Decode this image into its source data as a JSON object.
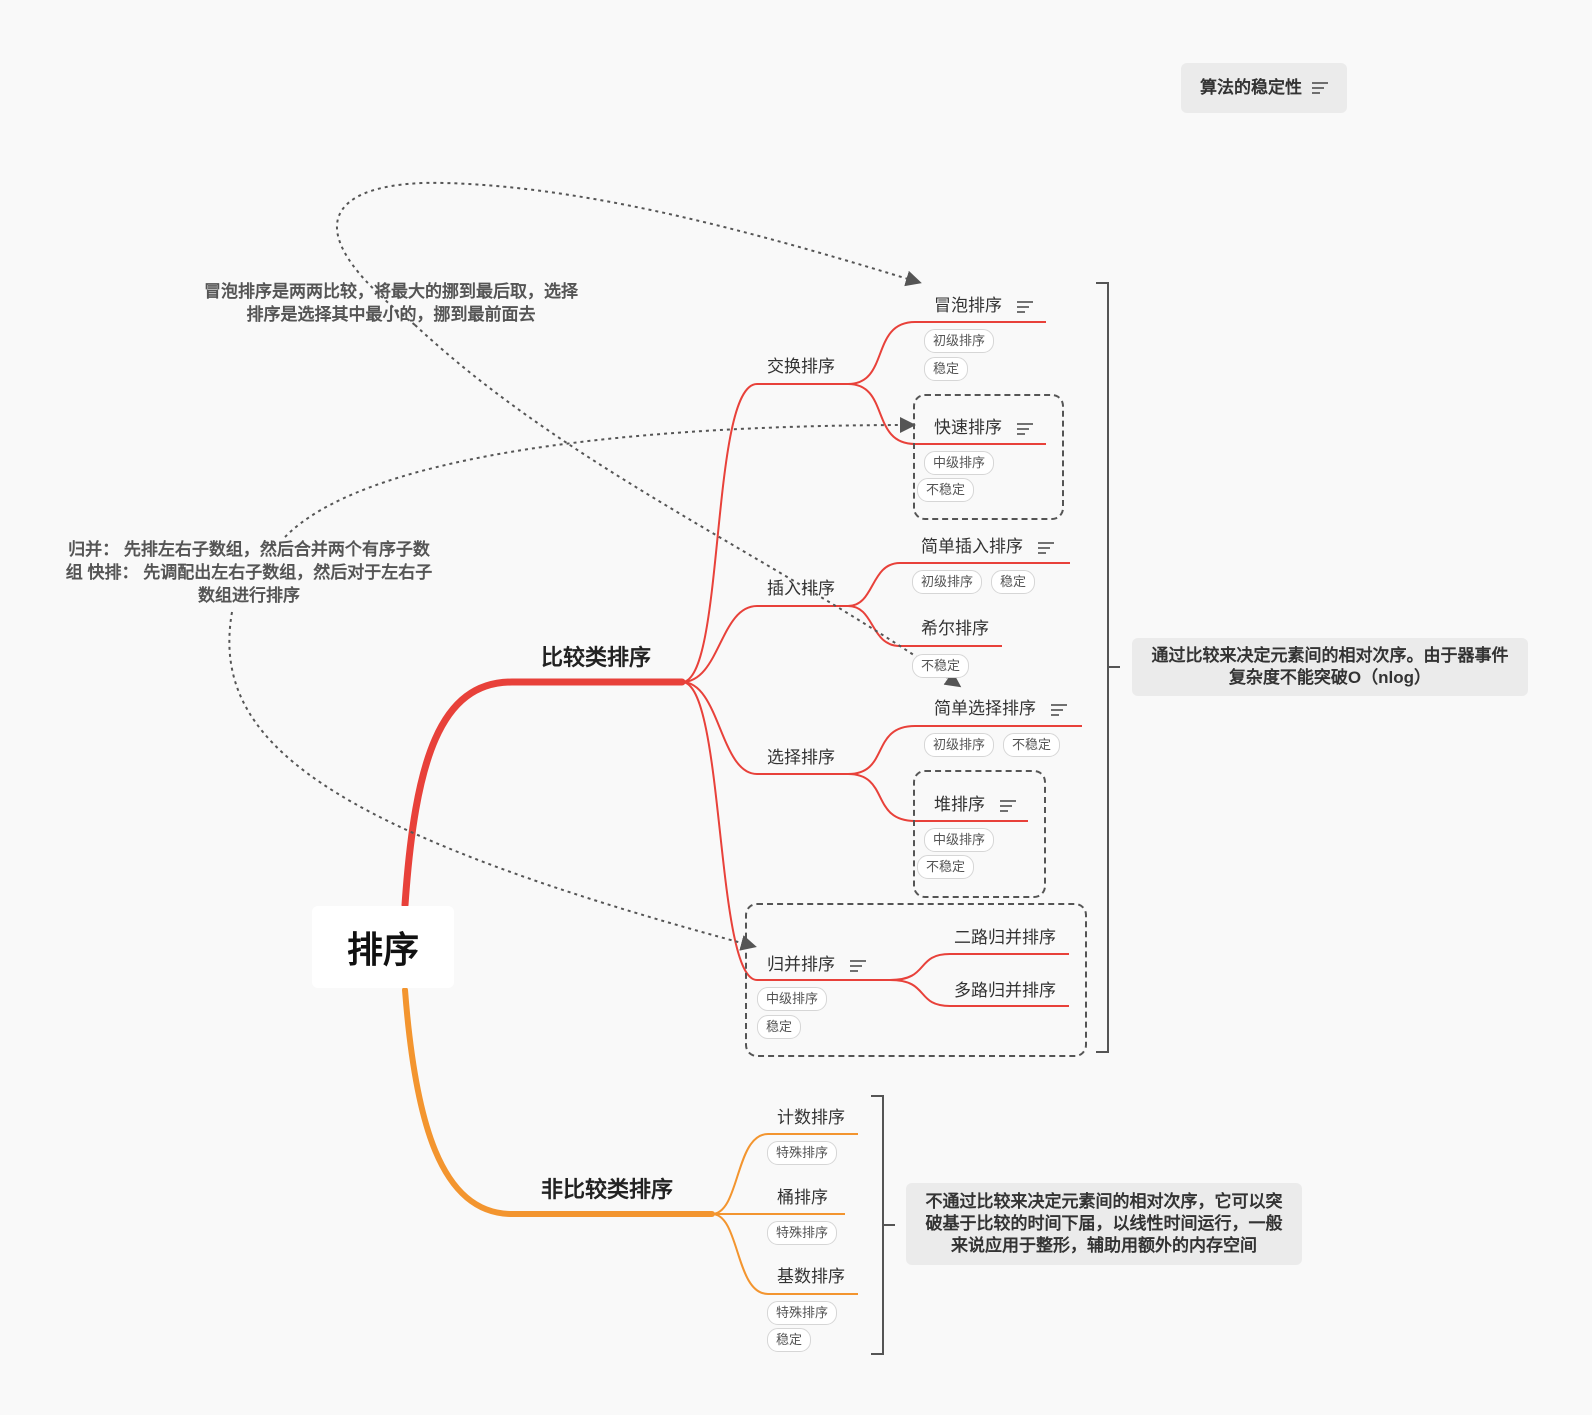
{
  "root": {
    "label": "排序"
  },
  "branches": {
    "comparison": {
      "label": "比较类排序",
      "color": "#e8413a",
      "summary": "通过比较来决定元素间的相对次序。由于器事件复杂度不能突破O（nlog）",
      "groups": {
        "exchange": {
          "label": "交换排序",
          "items": {
            "bubble": {
              "label": "冒泡排序",
              "tags": [
                "初级排序",
                "稳定"
              ]
            },
            "quick": {
              "label": "快速排序",
              "tags": [
                "中级排序",
                "不稳定"
              ]
            }
          }
        },
        "insertion": {
          "label": "插入排序",
          "items": {
            "simple_insertion": {
              "label": "简单插入排序",
              "tags": [
                "初级排序",
                "稳定"
              ]
            },
            "shell": {
              "label": "希尔排序",
              "tags": [
                "不稳定"
              ]
            }
          }
        },
        "selection": {
          "label": "选择排序",
          "items": {
            "simple_selection": {
              "label": "简单选择排序",
              "tags": [
                "初级排序",
                "不稳定"
              ]
            },
            "heap": {
              "label": "堆排序",
              "tags": [
                "中级排序",
                "不稳定"
              ]
            }
          }
        },
        "merge": {
          "label": "归并排序",
          "tags": [
            "中级排序",
            "稳定"
          ],
          "items": {
            "two_way": {
              "label": "二路归并排序"
            },
            "multi_way": {
              "label": "多路归并排序"
            }
          }
        }
      }
    },
    "non_comparison": {
      "label": "非比较类排序",
      "color": "#f3952f",
      "summary": "不通过比较来决定元素间的相对次序，它可以突破基于比较的时间下届，以线性时间运行，一般来说应用于整形，辅助用额外的内存空间",
      "items": {
        "counting": {
          "label": "计数排序",
          "tags": [
            "特殊排序"
          ]
        },
        "bucket": {
          "label": "桶排序",
          "tags": [
            "特殊排序"
          ]
        },
        "radix": {
          "label": "基数排序",
          "tags": [
            "特殊排序",
            "稳定"
          ]
        }
      }
    }
  },
  "floating": {
    "stability": "算法的稳定性",
    "bubble_vs_selection": "冒泡排序是两两比较，将最大的挪到最后取，选择排序是选择其中最小的，挪到最前面去",
    "merge_vs_quick": "归并： 先排左右子数组，然后合并两个有序子数组 快排： 先调配出左右子数组，然后对于左右子数组进行排序"
  },
  "icons": {
    "note": "note-lines-icon"
  }
}
